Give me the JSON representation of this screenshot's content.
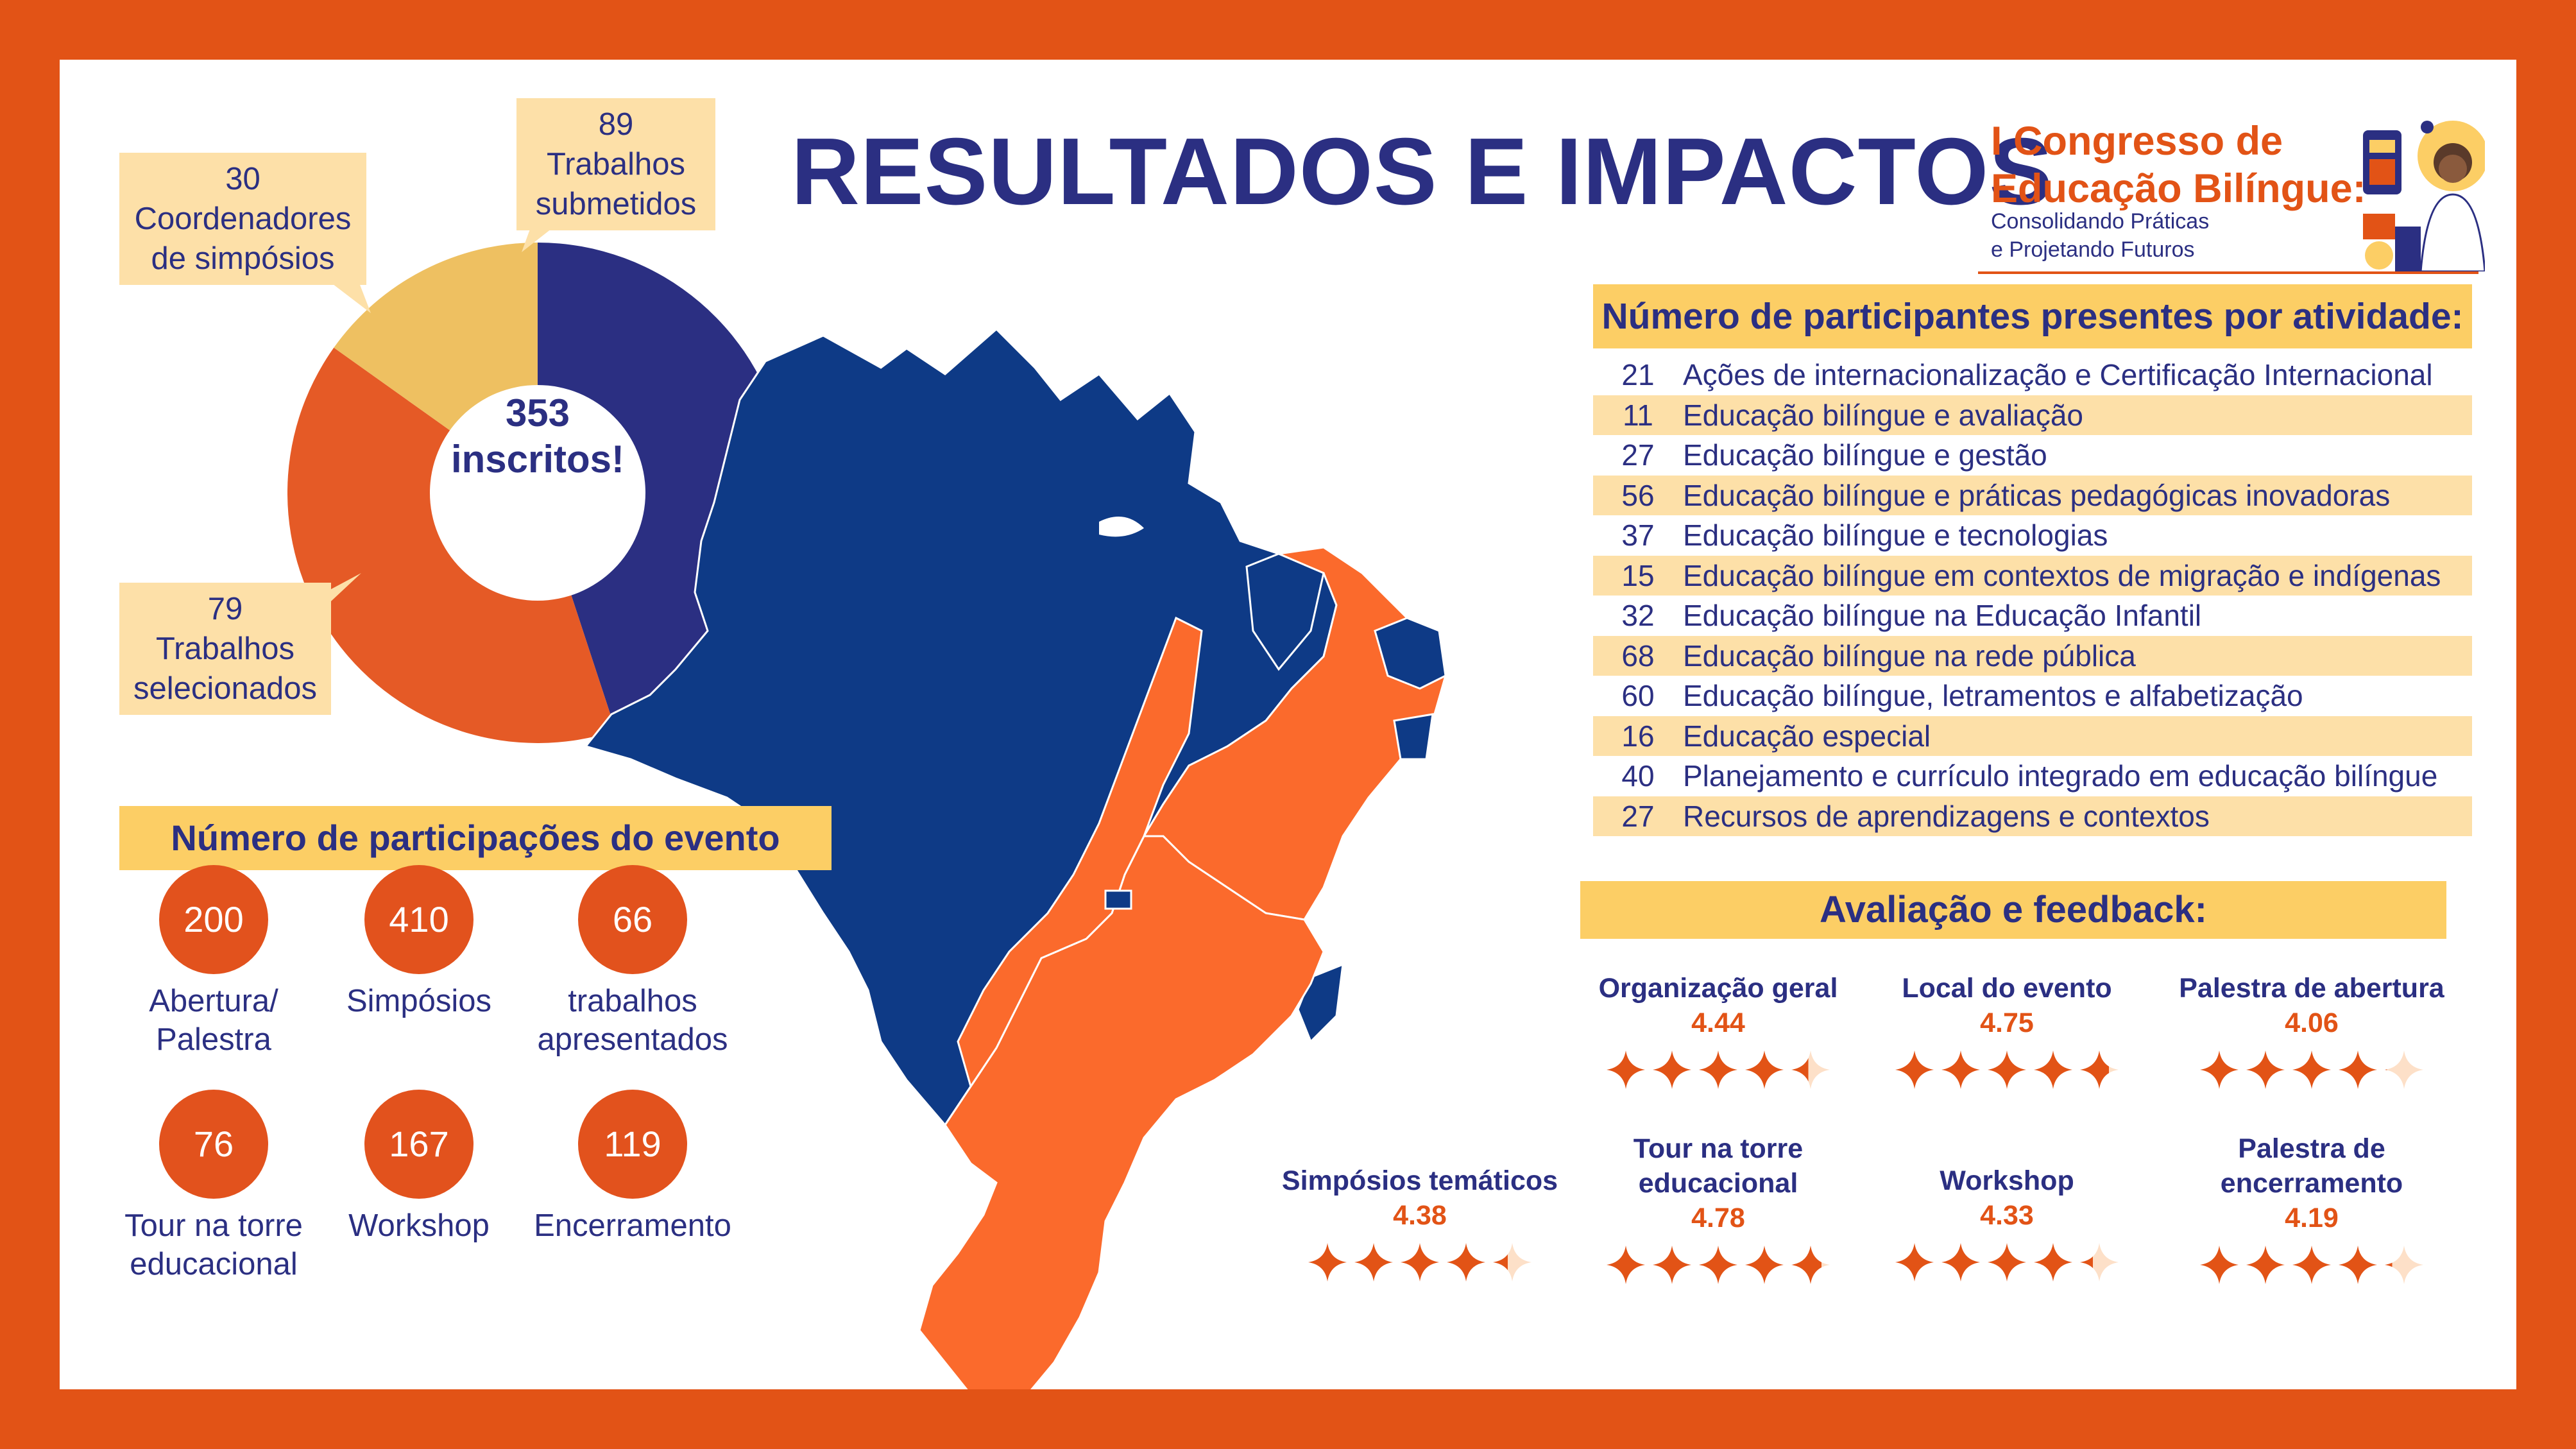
{
  "title": "RESULTADOS E IMPACTOS",
  "logo": {
    "title_line1": "I Congresso de",
    "title_line2": "Educação Bilíngue:",
    "subtitle_line1": "Consolidando Práticas",
    "subtitle_line2": "e Projetando Futuros"
  },
  "donut": {
    "center_line1": "353",
    "center_line2": "inscritos!",
    "segments": [
      {
        "value": 89,
        "label_line1": "89",
        "label_line2": "Trabalhos",
        "label_line3": "submetidos",
        "color": "#2b2f82"
      },
      {
        "value": 79,
        "label_line1": "79",
        "label_line2": "Trabalhos",
        "label_line3": "selecionados",
        "color": "#e55a26"
      },
      {
        "value": 30,
        "label_line1": "30",
        "label_line2": "Coordenadores",
        "label_line3": "de simpósios",
        "color": "#eec061"
      }
    ]
  },
  "participants": {
    "heading": "Número de participantes presentes por atividade:",
    "rows": [
      {
        "count": "21",
        "label": "Ações de internacionalização e Certificação Internacional"
      },
      {
        "count": "11",
        "label": "Educação bilíngue e avaliação"
      },
      {
        "count": "27",
        "label": "Educação bilíngue e gestão"
      },
      {
        "count": "56",
        "label": "Educação bilíngue e práticas pedagógicas inovadoras"
      },
      {
        "count": "37",
        "label": "Educação bilíngue e tecnologias"
      },
      {
        "count": "15",
        "label": "Educação bilíngue em contextos de migração e indígenas"
      },
      {
        "count": "32",
        "label": "Educação bilíngue na Educação Infantil"
      },
      {
        "count": "68",
        "label": "Educação bilíngue na rede pública"
      },
      {
        "count": "60",
        "label": "Educação bilíngue, letramentos e alfabetização"
      },
      {
        "count": "16",
        "label": "Educação especial"
      },
      {
        "count": "40",
        "label": "Planejamento e currículo integrado em educação bilíngue"
      },
      {
        "count": "27",
        "label": "Recursos de aprendizagens e contextos"
      }
    ]
  },
  "event": {
    "heading": "Número de participações do evento",
    "stats": [
      {
        "value": "200",
        "label_line1": "Abertura/",
        "label_line2": "Palestra"
      },
      {
        "value": "410",
        "label_line1": "Simpósios",
        "label_line2": ""
      },
      {
        "value": "66",
        "label_line1": "trabalhos",
        "label_line2": "apresentados"
      },
      {
        "value": "76",
        "label_line1": "Tour na torre",
        "label_line2": "educacional"
      },
      {
        "value": "167",
        "label_line1": "Workshop",
        "label_line2": ""
      },
      {
        "value": "119",
        "label_line1": "Encerramento",
        "label_line2": ""
      }
    ]
  },
  "feedback": {
    "heading": "Avaliação e feedback:",
    "max_stars": 5,
    "items": [
      {
        "name_line1": "Organização geral",
        "name_line2": "",
        "score": "4.44",
        "rating": 4.44
      },
      {
        "name_line1": "Local do evento",
        "name_line2": "",
        "score": "4.75",
        "rating": 4.75
      },
      {
        "name_line1": "Palestra de abertura",
        "name_line2": "",
        "score": "4.06",
        "rating": 4.06
      },
      {
        "name_line1": "Simpósios temáticos",
        "name_line2": "",
        "score": "4.38",
        "rating": 4.38
      },
      {
        "name_line1": "Tour na torre",
        "name_line2": "educacional",
        "score": "4.78",
        "rating": 4.78
      },
      {
        "name_line1": "Workshop",
        "name_line2": "",
        "score": "4.33",
        "rating": 4.33
      },
      {
        "name_line1": "Palestra de",
        "name_line2": "encerramento",
        "score": "4.19",
        "rating": 4.19
      }
    ]
  },
  "colors": {
    "navy": "#2b2f82",
    "orange": "#e25316",
    "map_blue": "#0e3a86",
    "map_orange": "#fb6a2c",
    "gold": "#fcce65",
    "cream": "#fde0a8"
  }
}
